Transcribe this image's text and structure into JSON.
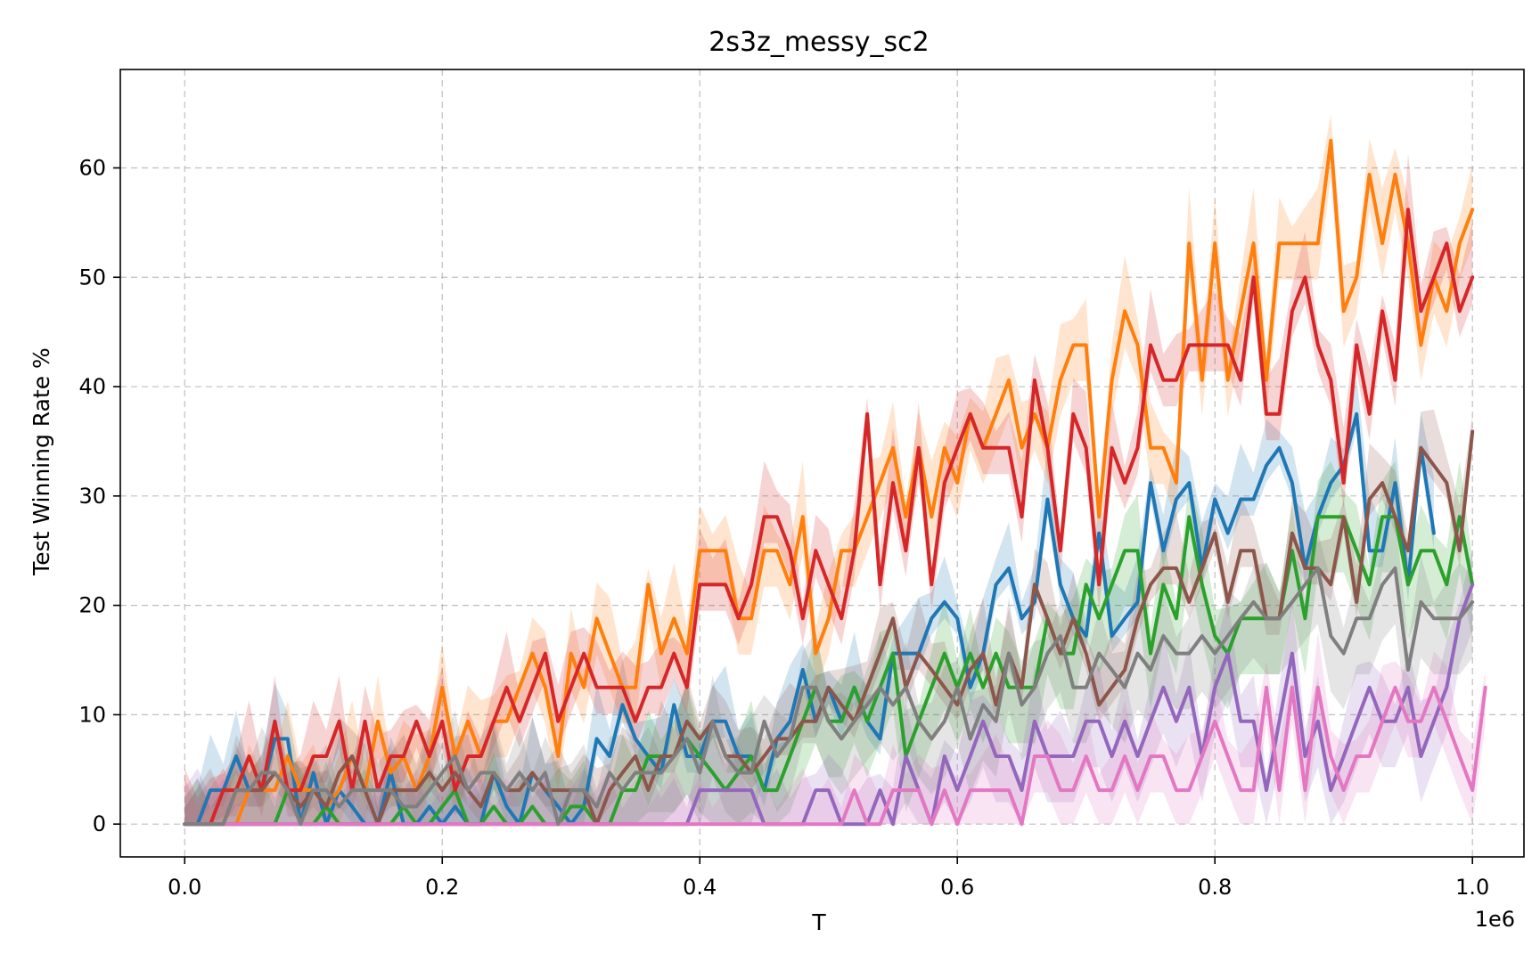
{
  "chart_data": {
    "type": "line",
    "title": "2s3z_messy_sc2",
    "xlabel": "T",
    "ylabel": "Test Winning Rate %",
    "x_offset_label": "1e6",
    "xlim": [
      -0.05,
      1.04
    ],
    "ylim": [
      -3,
      69
    ],
    "xticks": [
      0.0,
      0.2,
      0.4,
      0.6,
      0.8,
      1.0
    ],
    "xtick_labels": [
      "0.0",
      "0.2",
      "0.4",
      "0.6",
      "0.8",
      "1.0"
    ],
    "yticks": [
      0,
      10,
      20,
      30,
      40,
      50,
      60
    ],
    "ytick_labels": [
      "0",
      "10",
      "20",
      "30",
      "40",
      "50",
      "60"
    ],
    "grid": true,
    "x_step": 0.01,
    "series": [
      {
        "color": "#1f77b4",
        "values": [
          0,
          0,
          3.1,
          3.1,
          6.2,
          3.1,
          3.1,
          7.8,
          7.8,
          0,
          4.7,
          0,
          3.1,
          1.6,
          0,
          0,
          4.7,
          0,
          0,
          1.6,
          0,
          1.6,
          0,
          0,
          4.7,
          1.6,
          0,
          4.7,
          3.1,
          1.6,
          0,
          1.6,
          7.8,
          6.2,
          10.9,
          7.8,
          6.2,
          4.7,
          10.9,
          6.2,
          6.2,
          9.4,
          9.4,
          6.2,
          6.2,
          3.1,
          7.8,
          9.4,
          14.1,
          9.4,
          12.5,
          9.4,
          12.5,
          9.4,
          7.8,
          15.6,
          15.6,
          15.6,
          18.8,
          20.3,
          18.8,
          12.5,
          15.6,
          21.9,
          23.4,
          18.8,
          20.3,
          29.7,
          21.9,
          18.8,
          17.2,
          26.6,
          17.2,
          18.8,
          20.3,
          31.2,
          25,
          29.7,
          31.2,
          23.4,
          29.7,
          26.6,
          29.7,
          29.7,
          32.8,
          34.4,
          31.2,
          23.4,
          28.1,
          31.2,
          32.8,
          37.5,
          25,
          25,
          31.2,
          21.9,
          34.4,
          26.6
        ]
      },
      {
        "color": "#ff7f0e",
        "values": [
          0,
          0,
          0,
          0,
          0,
          3.1,
          3.1,
          3.1,
          6.2,
          3.1,
          3.1,
          1.6,
          3.1,
          6.2,
          3.1,
          9.4,
          4.7,
          6.2,
          3.1,
          6.2,
          12.5,
          6.2,
          9.4,
          6.2,
          9.4,
          9.4,
          12.5,
          15.6,
          12.5,
          6.2,
          15.6,
          12.5,
          18.8,
          15.6,
          12.5,
          12.5,
          21.9,
          15.6,
          18.8,
          15.6,
          25,
          25,
          25,
          18.8,
          18.8,
          25,
          25,
          21.9,
          28.1,
          15.6,
          18.8,
          25,
          25,
          28.1,
          31.2,
          34.4,
          28.1,
          34.4,
          28.1,
          34.4,
          31.2,
          37.5,
          34.4,
          37.5,
          40.6,
          34.4,
          37.5,
          34.4,
          40.6,
          43.8,
          43.8,
          28.1,
          40.6,
          46.9,
          43.8,
          34.4,
          34.4,
          31.2,
          53.1,
          40.6,
          53.1,
          40.6,
          46.9,
          53.1,
          40.6,
          53.1,
          53.1,
          53.1,
          53.1,
          62.5,
          46.9,
          50,
          59.4,
          53.1,
          59.4,
          53.1,
          43.8,
          50,
          46.9,
          53.1,
          56.2
        ]
      },
      {
        "color": "#2ca02c",
        "values": [
          0,
          0,
          0,
          0,
          0,
          0,
          0,
          0,
          3.1,
          0,
          0,
          1.6,
          0,
          0,
          0,
          0,
          0,
          1.6,
          0,
          0,
          1.6,
          3.1,
          0,
          0,
          1.6,
          0,
          0,
          1.6,
          0,
          0,
          1.6,
          1.6,
          0,
          0,
          3.1,
          3.1,
          6.2,
          6.2,
          6.2,
          7.8,
          6.2,
          4.7,
          3.1,
          4.7,
          6.2,
          3.1,
          3.1,
          6.2,
          9.4,
          12.5,
          9.4,
          9.4,
          12.5,
          9.4,
          12.5,
          15.6,
          6.2,
          9.4,
          12.5,
          15.6,
          12.5,
          15.6,
          12.5,
          15.6,
          12.5,
          12.5,
          12.5,
          18.8,
          15.6,
          15.6,
          21.9,
          18.8,
          21.9,
          25,
          25,
          15.6,
          21.9,
          18.8,
          28.1,
          21.9,
          17.2,
          15.6,
          18.8,
          18.8,
          18.8,
          18.8,
          25,
          18.8,
          28.1,
          28.1,
          28.1,
          25,
          21.9,
          28.1,
          28.1,
          21.9,
          25,
          25,
          21.9,
          28.1,
          21.9
        ]
      },
      {
        "color": "#d62728",
        "values": [
          0,
          0,
          0,
          3.1,
          3.1,
          6.2,
          3.1,
          9.4,
          3.1,
          3.1,
          6.2,
          6.2,
          9.4,
          3.1,
          9.4,
          3.1,
          6.2,
          6.2,
          9.4,
          6.2,
          9.4,
          3.1,
          6.2,
          6.2,
          9.4,
          12.5,
          9.4,
          12.5,
          15.6,
          9.4,
          12.5,
          15.6,
          12.5,
          12.5,
          12.5,
          9.4,
          12.5,
          12.5,
          15.6,
          12.5,
          21.9,
          21.9,
          21.9,
          18.8,
          21.9,
          28.1,
          28.1,
          25,
          18.8,
          25,
          21.9,
          18.8,
          25,
          37.5,
          21.9,
          31.2,
          25,
          34.4,
          21.9,
          31.2,
          34.4,
          37.5,
          34.4,
          34.4,
          34.4,
          28.1,
          40.6,
          34.4,
          25,
          37.5,
          34.4,
          21.9,
          34.4,
          31.2,
          34.4,
          43.8,
          40.6,
          40.6,
          43.8,
          43.8,
          43.8,
          43.8,
          40.6,
          50,
          37.5,
          37.5,
          46.9,
          50,
          43.8,
          40.6,
          31.2,
          43.8,
          37.5,
          46.9,
          40.6,
          56.2,
          46.9,
          50,
          53.1,
          46.9,
          50
        ]
      },
      {
        "color": "#9467bd",
        "values": [
          0,
          0,
          0,
          0,
          0,
          0,
          0,
          0,
          0,
          0,
          0,
          0,
          0,
          0,
          0,
          0,
          0,
          0,
          0,
          0,
          0,
          0,
          0,
          0,
          0,
          0,
          0,
          0,
          0,
          0,
          0,
          0,
          0,
          0,
          0,
          0,
          0,
          0,
          0,
          0,
          3.1,
          3.1,
          3.1,
          3.1,
          3.1,
          0,
          0,
          0,
          0,
          3.1,
          3.1,
          0,
          0,
          0,
          3.1,
          0,
          6.2,
          3.1,
          0,
          6.2,
          3.1,
          6.2,
          9.4,
          6.2,
          6.2,
          3.1,
          9.4,
          6.2,
          6.2,
          6.2,
          9.4,
          9.4,
          6.2,
          9.4,
          6.2,
          9.4,
          12.5,
          9.4,
          12.5,
          6.2,
          12.5,
          15.6,
          9.4,
          9.4,
          3.1,
          9.4,
          15.6,
          6.2,
          9.4,
          3.1,
          6.2,
          9.4,
          12.5,
          9.4,
          9.4,
          12.5,
          6.2,
          9.4,
          12.5,
          18.8,
          21.9
        ]
      },
      {
        "color": "#8c564b",
        "values": [
          0,
          0,
          0,
          0,
          3.1,
          3.1,
          3.1,
          4.7,
          3.1,
          1.6,
          3.1,
          1.6,
          4.7,
          6.2,
          3.1,
          0,
          3.1,
          3.1,
          3.1,
          4.7,
          3.1,
          4.7,
          3.1,
          1.6,
          4.7,
          3.1,
          3.1,
          4.7,
          3.1,
          3.1,
          3.1,
          3.1,
          0,
          3.1,
          4.7,
          6.2,
          3.1,
          6.2,
          6.2,
          9.4,
          7.8,
          9.4,
          6.2,
          6.2,
          4.7,
          6.2,
          7.8,
          7.8,
          9.4,
          9.4,
          12.5,
          10.9,
          9.4,
          12.5,
          15.6,
          18.8,
          12.5,
          15.6,
          14.1,
          12.5,
          10.9,
          14.1,
          15.6,
          10.9,
          15.6,
          12.5,
          21.9,
          18.8,
          15.6,
          18.8,
          15.6,
          10.9,
          12.5,
          14.1,
          18.8,
          21.9,
          23.4,
          23.4,
          20.3,
          23.4,
          26.6,
          20.3,
          25,
          25,
          18.8,
          18.8,
          26.6,
          23.4,
          23.4,
          21.9,
          28.1,
          20.3,
          29.7,
          31.2,
          28.1,
          25,
          34.4,
          32.8,
          31.2,
          25,
          35.9
        ]
      },
      {
        "color": "#e377c2",
        "values": [
          0,
          0,
          0,
          0,
          0,
          0,
          0,
          0,
          0,
          0,
          0,
          0,
          0,
          0,
          0,
          0,
          0,
          0,
          0,
          0,
          0,
          0,
          0,
          0,
          0,
          0,
          0,
          0,
          0,
          0,
          0,
          0,
          0,
          0,
          0,
          0,
          0,
          0,
          0,
          0,
          0,
          0,
          0,
          0,
          0,
          0,
          0,
          0,
          0,
          0,
          0,
          0,
          3.1,
          0,
          0,
          3.1,
          3.1,
          3.1,
          0,
          3.1,
          0,
          3.1,
          3.1,
          3.1,
          3.1,
          0,
          6.2,
          6.2,
          3.1,
          3.1,
          6.2,
          3.1,
          3.1,
          6.2,
          3.1,
          6.2,
          6.2,
          3.1,
          3.1,
          6.2,
          9.4,
          6.2,
          3.1,
          3.1,
          12.5,
          3.1,
          12.5,
          3.1,
          12.5,
          6.2,
          3.1,
          6.2,
          6.2,
          9.4,
          12.5,
          9.4,
          9.4,
          12.5,
          9.4,
          6.2,
          3.1,
          12.5
        ]
      },
      {
        "color": "#7f7f7f",
        "values": [
          0,
          0,
          0,
          0,
          3.1,
          3.1,
          4.7,
          4.7,
          3.1,
          0,
          3.1,
          3.1,
          1.6,
          3.1,
          3.1,
          3.1,
          3.1,
          1.6,
          1.6,
          3.1,
          4.7,
          6.2,
          3.1,
          4.7,
          4.7,
          3.1,
          4.7,
          3.1,
          4.7,
          0,
          3.1,
          3.1,
          1.6,
          4.7,
          3.1,
          4.7,
          4.7,
          4.7,
          6.2,
          7.8,
          4.7,
          9.4,
          6.2,
          4.7,
          4.7,
          9.4,
          6.2,
          7.8,
          12.5,
          12.5,
          9.4,
          7.8,
          9.4,
          10.9,
          12.5,
          10.9,
          12.5,
          9.4,
          7.8,
          9.4,
          12.5,
          7.8,
          10.9,
          9.4,
          15.6,
          10.9,
          12.5,
          15.6,
          17.2,
          12.5,
          12.5,
          15.6,
          14.1,
          12.5,
          15.6,
          14.1,
          17.2,
          15.6,
          15.6,
          17.2,
          15.6,
          17.2,
          18.8,
          20.3,
          18.8,
          18.8,
          20.3,
          21.9,
          23.4,
          17.2,
          15.6,
          18.8,
          18.8,
          21.9,
          23.4,
          14.1,
          20.3,
          18.8,
          18.8,
          18.8,
          20.3
        ]
      }
    ]
  }
}
